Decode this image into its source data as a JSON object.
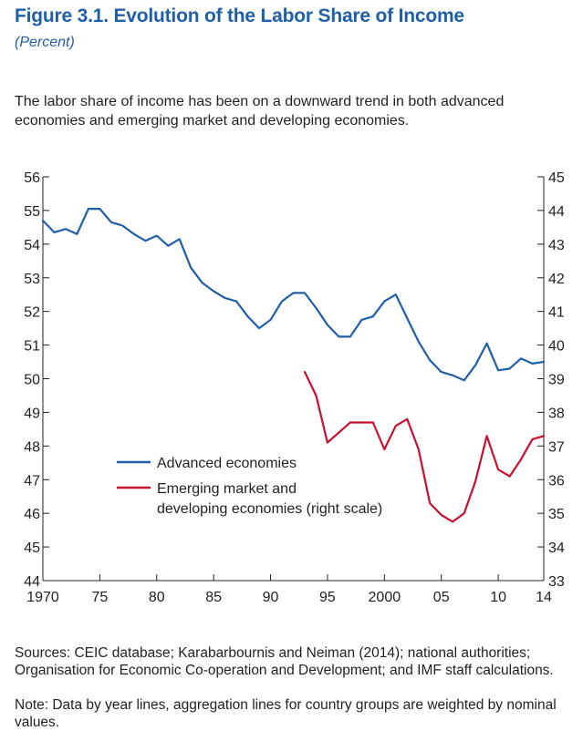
{
  "figure": {
    "title": "Figure 3.1.  Evolution of the Labor Share of Income",
    "units": "(Percent)",
    "subtitle": "The labor share of income has been on a downward trend in both advanced economies and emerging market and developing economies.",
    "source": "Sources: CEIC database; Karabarbournis and Neiman (2014); national authorities; Organisation for Economic Co-operation and Development; and IMF staff calculations.",
    "note": "Note: Data by year lines, aggregation lines for country groups are weighted by nominal values."
  },
  "chart_data": {
    "type": "line",
    "title": "Figure 3.1.  Evolution of the Labor Share of Income",
    "units": "(Percent)",
    "x_ticks": [
      1970,
      1975,
      1980,
      1985,
      1990,
      1995,
      2000,
      2005,
      2010,
      2014
    ],
    "x_tick_labels": [
      "1970",
      "75",
      "80",
      "85",
      "90",
      "95",
      "2000",
      "05",
      "10",
      "14"
    ],
    "xlim": [
      1970,
      2014
    ],
    "y_left": {
      "lim": [
        44,
        56
      ],
      "ticks": [
        44,
        45,
        46,
        47,
        48,
        49,
        50,
        51,
        52,
        53,
        54,
        55,
        56
      ],
      "tick_labels": [
        "44",
        "45",
        "46",
        "47",
        "48",
        "49",
        "50",
        "51",
        "52",
        "53",
        "54",
        "55",
        "56"
      ]
    },
    "y_right": {
      "lim": [
        33,
        45
      ],
      "ticks": [
        33,
        34,
        35,
        36,
        37,
        38,
        39,
        40,
        41,
        42,
        43,
        44,
        45
      ],
      "tick_labels": [
        "33",
        "34",
        "35",
        "36",
        "37",
        "38",
        "39",
        "40",
        "41",
        "42",
        "43",
        "44",
        "45"
      ]
    },
    "grid": false,
    "legend_position": "lower-left",
    "series": [
      {
        "name": "Advanced economies",
        "color": "#1f5fa8",
        "axis": "left",
        "x": [
          1970,
          1971,
          1972,
          1973,
          1974,
          1975,
          1976,
          1977,
          1978,
          1979,
          1980,
          1981,
          1982,
          1983,
          1984,
          1985,
          1986,
          1987,
          1988,
          1989,
          1990,
          1991,
          1992,
          1993,
          1994,
          1995,
          1996,
          1997,
          1998,
          1999,
          2000,
          2001,
          2002,
          2003,
          2004,
          2005,
          2006,
          2007,
          2008,
          2009,
          2010,
          2011,
          2012,
          2013,
          2014
        ],
        "y": [
          54.7,
          54.35,
          54.45,
          54.3,
          55.05,
          55.05,
          54.65,
          54.55,
          54.3,
          54.1,
          54.25,
          53.95,
          54.15,
          53.3,
          52.85,
          52.6,
          52.4,
          52.3,
          51.85,
          51.5,
          51.75,
          52.3,
          52.55,
          52.55,
          52.1,
          51.6,
          51.25,
          51.25,
          51.75,
          51.85,
          52.3,
          52.5,
          51.8,
          51.1,
          50.55,
          50.2,
          50.1,
          49.95,
          50.4,
          51.05,
          50.25,
          50.3,
          50.6,
          50.45,
          50.5
        ]
      },
      {
        "name": "Emerging market and developing economies (right scale)",
        "legend_lines": [
          "Emerging market and",
          "developing economies (right scale)"
        ],
        "color": "#c8102e",
        "axis": "right",
        "x": [
          1993,
          1994,
          1995,
          1996,
          1997,
          1998,
          1999,
          2000,
          2001,
          2002,
          2003,
          2004,
          2005,
          2006,
          2007,
          2008,
          2009,
          2010,
          2011,
          2012,
          2013,
          2014
        ],
        "y": [
          39.2,
          38.5,
          37.1,
          37.4,
          37.7,
          37.7,
          37.7,
          36.9,
          37.6,
          37.8,
          36.9,
          35.3,
          34.95,
          34.75,
          35.0,
          35.95,
          37.3,
          36.3,
          36.1,
          36.6,
          37.2,
          37.3
        ]
      }
    ]
  }
}
